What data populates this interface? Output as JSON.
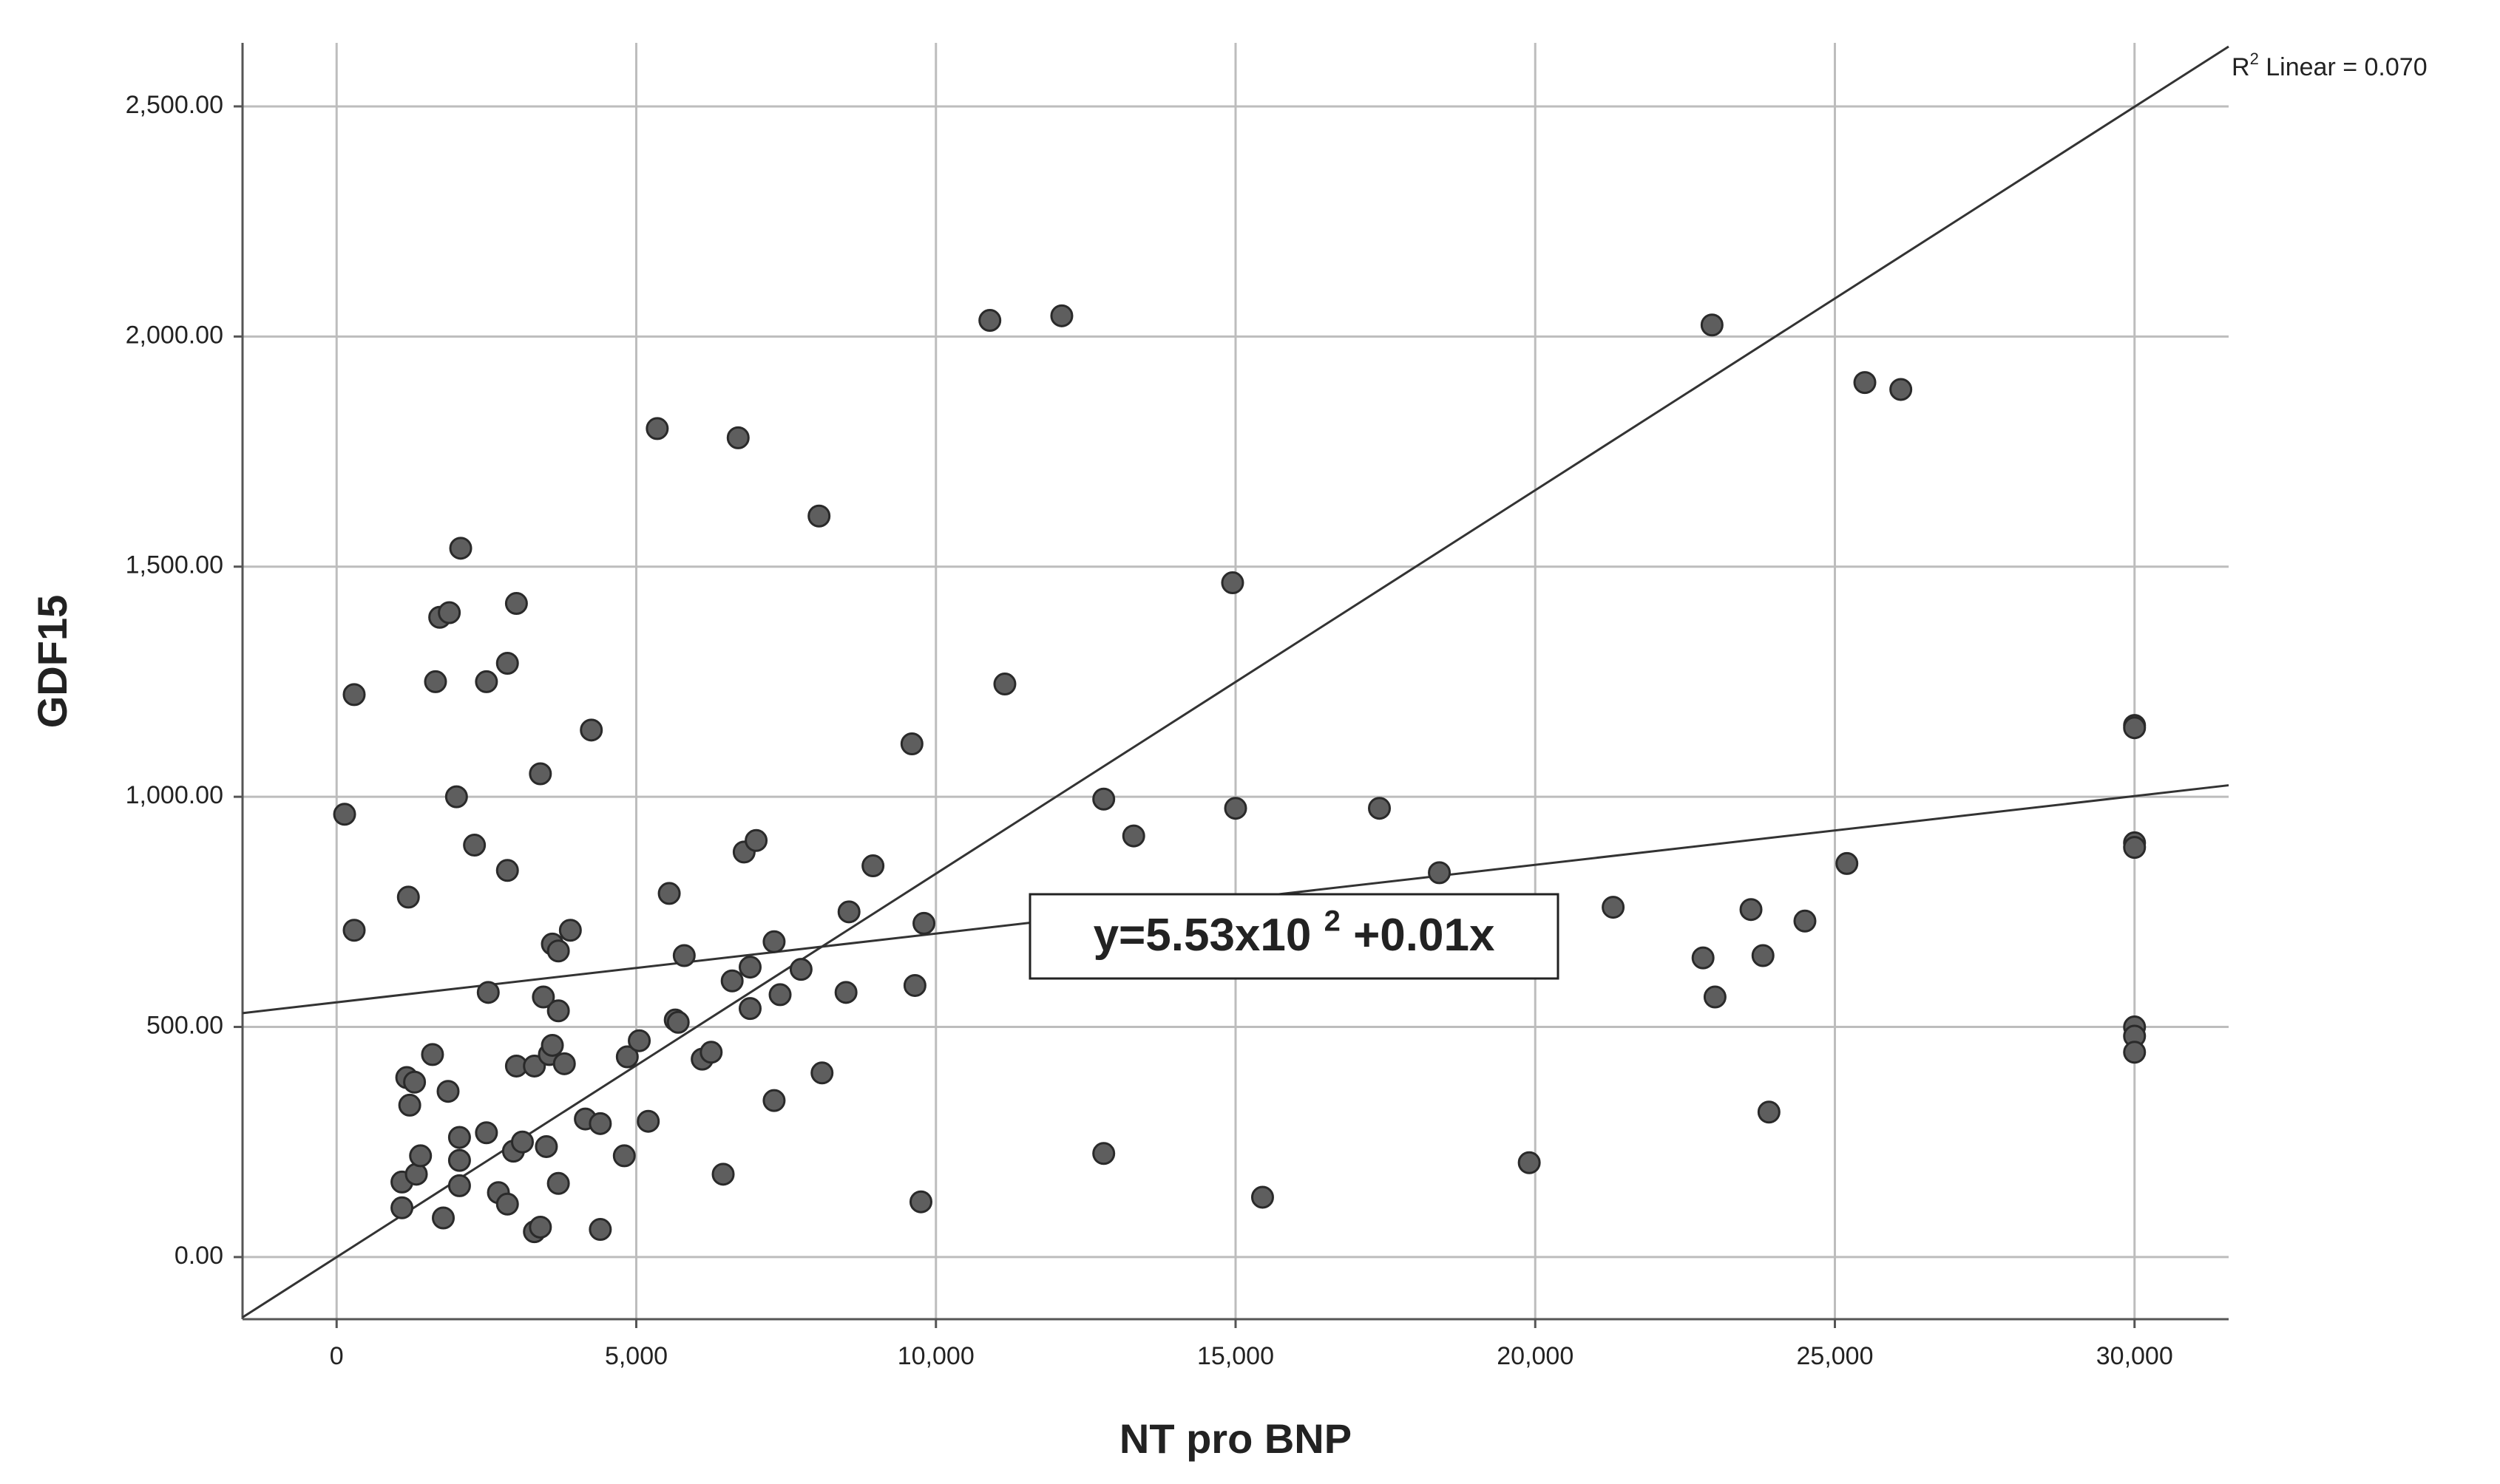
{
  "chart_data": {
    "type": "scatter",
    "x_label": "NT pro BNP",
    "y_label": "GDF15",
    "xlim": [
      -1570,
      31570
    ],
    "ylim": [
      -135,
      2638
    ],
    "xticks": [
      0,
      {
        "value": 5000,
        "label": "5,000"
      },
      {
        "value": 10000,
        "label": "10,000"
      },
      {
        "value": 15000,
        "label": "15,000"
      },
      {
        "value": 20000,
        "label": "20,000"
      },
      {
        "value": 25000,
        "label": "25,000"
      },
      {
        "value": 30000,
        "label": "30,000"
      }
    ],
    "yticks": [
      {
        "value": 0,
        "label": "0.00"
      },
      {
        "value": 500,
        "label": "500.00"
      },
      {
        "value": 1000,
        "label": "1,000.00"
      },
      {
        "value": 1500,
        "label": "1,500.00"
      },
      {
        "value": 2000,
        "label": "2,000.00"
      },
      {
        "value": 2500,
        "label": "2,500.00"
      }
    ],
    "grid": true,
    "color": "#5e5e5e",
    "line_color": "#333333",
    "x": [
      133,
      293,
      293,
      1197,
      1090,
      1090,
      1170,
      1220,
      1300,
      1330,
      1400,
      1600,
      1650,
      1720,
      1880,
      1860,
      1780,
      2000,
      2070,
      2050,
      2050,
      2050,
      2300,
      2500,
      2530,
      2500,
      2700,
      2850,
      2850,
      2850,
      3000,
      2950,
      3000,
      3100,
      3300,
      3300,
      3400,
      3400,
      3450,
      3500,
      3550,
      3600,
      3600,
      3700,
      3700,
      3700,
      3800,
      3900,
      4150,
      4250,
      4400,
      4400,
      4800,
      4850,
      5050,
      5200,
      5350,
      5550,
      5650,
      5700,
      5800,
      6100,
      6250,
      6450,
      6600,
      6700,
      6800,
      6900,
      6900,
      7000,
      7300,
      7300,
      7400,
      7750,
      8050,
      8100,
      8500,
      8550,
      8950,
      9600,
      9650,
      9750,
      9800,
      10900,
      11150,
      12100,
      12800,
      12800,
      13300,
      14950,
      15000,
      15450,
      17400,
      18400,
      19900,
      21300,
      22800,
      22950,
      23000,
      23600,
      23800,
      23900,
      24500,
      25200,
      25500,
      26100,
      30000,
      30000,
      30000,
      30000,
      30000,
      30000,
      30000
    ],
    "values": [
      962,
      1222,
      710,
      782,
      163,
      107,
      390,
      330,
      380,
      180,
      220,
      440,
      1250,
      1390,
      1400,
      360,
      85,
      1000,
      1540,
      260,
      210,
      155,
      895,
      1250,
      575,
      270,
      140,
      115,
      840,
      1290,
      1420,
      230,
      415,
      250,
      415,
      55,
      65,
      1050,
      565,
      240,
      440,
      460,
      680,
      665,
      535,
      160,
      420,
      710,
      300,
      1145,
      290,
      60,
      220,
      435,
      470,
      295,
      1800,
      790,
      515,
      510,
      655,
      430,
      445,
      180,
      600,
      1780,
      880,
      630,
      540,
      905,
      685,
      340,
      570,
      625,
      1610,
      400,
      575,
      750,
      850,
      1115,
      590,
      120,
      725,
      2035,
      1245,
      2045,
      995,
      225,
      915,
      1465,
      975,
      130,
      975,
      835,
      205,
      760,
      650,
      2025,
      565,
      755,
      655,
      315,
      730,
      855,
      1900,
      1885,
      1155,
      1150,
      900,
      890,
      500,
      480,
      445
    ],
    "lines": [
      {
        "x": [
          -1570,
          31570
        ],
        "y": [
          -131,
          2630
        ]
      },
      {
        "x": [
          -1570,
          31570
        ],
        "y": [
          530,
          1025
        ]
      }
    ],
    "annotations": [
      {
        "text": "R",
        "sup": "2",
        "after": " Linear = 0.070"
      },
      {
        "text": "y=5.53x10 ",
        "sup": "2",
        "after": " +0.01x"
      }
    ]
  }
}
